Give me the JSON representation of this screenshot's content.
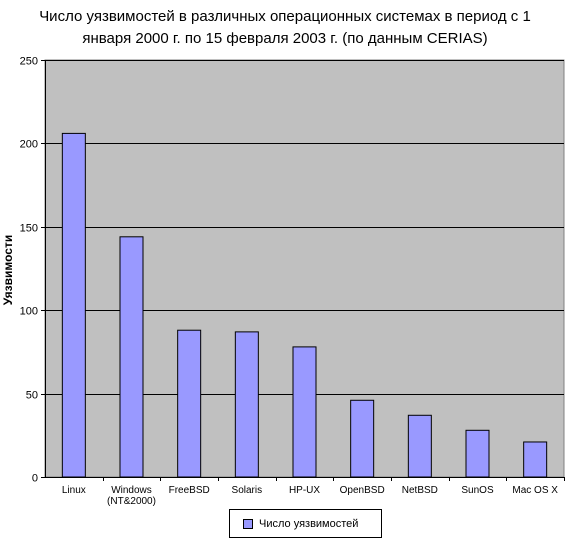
{
  "chart_data": {
    "type": "bar",
    "title_line1": "Число уязвимостей в различных операционных системах в период с 1",
    "title_line2": "января 2000 г. по 15 февраля 2003 г. (по данным CERIAS)",
    "xlabel": "",
    "ylabel": "Уязвимости",
    "ylim": [
      0,
      250
    ],
    "yticks": [
      "0",
      "50",
      "100",
      "150",
      "200",
      "250"
    ],
    "grid": true,
    "legend_position": "bottom-center",
    "categories": [
      [
        "Linux"
      ],
      [
        "Windows",
        "(NT&2000)"
      ],
      [
        "FreeBSD"
      ],
      [
        "Solaris"
      ],
      [
        "HP-UX"
      ],
      [
        "OpenBSD"
      ],
      [
        "NetBSD"
      ],
      [
        "SunOS"
      ],
      [
        "Mac OS X"
      ]
    ],
    "series": [
      {
        "name": "Число уязвимостей",
        "values": [
          206,
          144,
          88,
          87,
          78,
          46,
          37,
          28,
          21
        ]
      }
    ],
    "colors": {
      "bar_fill": "#9999ff",
      "plot_background": "#c0c0c0",
      "gridline": "#000000"
    }
  }
}
